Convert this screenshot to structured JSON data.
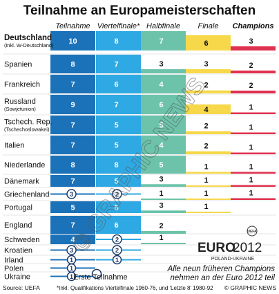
{
  "title": "Teilnahme an Europameisterschaften",
  "chart_data": {
    "type": "bar",
    "title": "Teilnahme an Europameisterschaften",
    "stages": [
      "Teilnahme",
      "Viertelfinale*",
      "Halbfinale",
      "Finale",
      "Champions"
    ],
    "stage_colors": [
      "#1b72b8",
      "#2fa9e3",
      "#6cc3a9",
      "#f6d84a",
      "#e0304f"
    ],
    "rows": [
      {
        "team": "Deutschland",
        "sub": "(inkl. W-Deutschland)",
        "bold": true,
        "values": [
          10,
          8,
          7,
          6,
          3
        ]
      },
      {
        "team": "Spanien",
        "sub": "",
        "values": [
          8,
          7,
          3,
          3,
          2
        ]
      },
      {
        "team": "Frankreich",
        "sub": "",
        "values": [
          7,
          6,
          4,
          2,
          2
        ]
      },
      {
        "team": "Russland",
        "sub": "(Sowjetunion)",
        "values": [
          9,
          7,
          6,
          4,
          1
        ]
      },
      {
        "team": "Tschech. Rep.",
        "sub": "(Tschechoslowakei)",
        "values": [
          7,
          5,
          5,
          2,
          1
        ]
      },
      {
        "team": "Italien",
        "sub": "",
        "values": [
          7,
          5,
          4,
          2,
          1
        ]
      },
      {
        "team": "Niederlande",
        "sub": "",
        "values": [
          8,
          8,
          5,
          1,
          1
        ]
      },
      {
        "team": "Dänemark",
        "sub": "",
        "values": [
          7,
          5,
          3,
          1,
          1
        ]
      },
      {
        "team": "Griechenland",
        "sub": "",
        "values": [
          3,
          2,
          1,
          1,
          1
        ]
      },
      {
        "team": "Portugal",
        "sub": "",
        "values": [
          5,
          5,
          3,
          1,
          0
        ]
      },
      {
        "team": "England",
        "sub": "",
        "values": [
          7,
          6,
          2,
          0,
          0
        ]
      },
      {
        "team": "Schweden",
        "sub": "",
        "values": [
          4,
          2,
          1,
          0,
          0
        ]
      },
      {
        "team": "Kroatien",
        "sub": "",
        "values": [
          3,
          2,
          0,
          0,
          0
        ]
      },
      {
        "team": "Irland",
        "sub": "",
        "values": [
          1,
          1,
          0,
          0,
          0
        ]
      },
      {
        "team": "Polen",
        "sub": "",
        "values": [
          1,
          0,
          0,
          0,
          0
        ]
      },
      {
        "team": "Ukraine",
        "sub": "",
        "values": [
          1,
          0,
          0,
          0,
          0
        ]
      }
    ],
    "first_participation": [
      "Polen",
      "Ukraine"
    ]
  },
  "legend": {
    "first_label": "Erste Teilnahme"
  },
  "logo": {
    "uefa": "UEFA",
    "euro": "EURO",
    "year": "2012",
    "host": "POLAND-UKRAINE"
  },
  "note": {
    "line1": "Alle neun früheren Champions",
    "line2": "nehmen an der Euro 2012 teil"
  },
  "footer": {
    "source": "Source: UEFA",
    "footnote": "*Inkl. Qualifikations Viertelfinale 1960-76, und 'Letzte 8' 1980-92",
    "credit": "© GRAPHIC NEWS"
  },
  "watermark": "© GRAPHIC NEWS"
}
